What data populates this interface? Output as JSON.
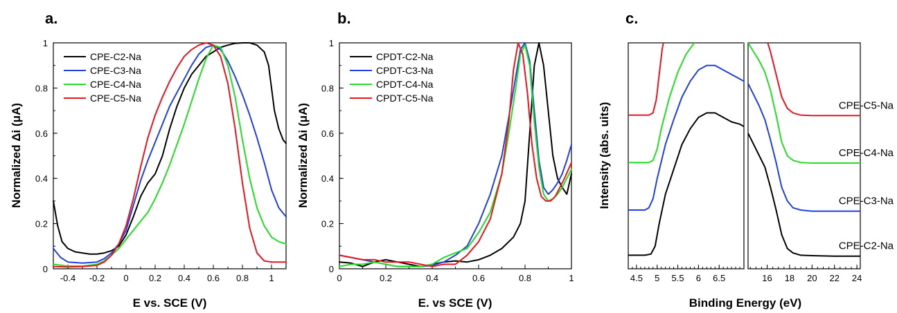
{
  "colors": {
    "black": "#000000",
    "blue": "#1f3fe0",
    "green": "#22dd22",
    "red": "#e8141e"
  },
  "chart_data": [
    {
      "type": "line",
      "panel_letter": "a.",
      "xlabel": "E vs. SCE (V)",
      "ylabel": "Normalized Δi (μA)",
      "xlim": [
        -0.5,
        1.1
      ],
      "ylim": [
        0,
        1
      ],
      "xticks": [
        -0.4,
        -0.2,
        0,
        0.2,
        0.4,
        0.6,
        0.8,
        1
      ],
      "xtick_labels": [
        "-0.4",
        "-0.2",
        "0",
        "0.2",
        "0.4",
        "0.6",
        "0.8",
        "1"
      ],
      "yticks": [
        0,
        0.2,
        0.4,
        0.6,
        0.8,
        1
      ],
      "ytick_labels": [
        "0",
        "0.2",
        "0.4",
        "0.6",
        "0.8",
        "1"
      ],
      "legend_position": "top-left",
      "series": [
        {
          "name": "CPE-C2-Na",
          "color": "#000000",
          "x": [
            -0.5,
            -0.47,
            -0.44,
            -0.4,
            -0.35,
            -0.3,
            -0.25,
            -0.2,
            -0.15,
            -0.1,
            -0.05,
            0,
            0.05,
            0.1,
            0.15,
            0.2,
            0.25,
            0.3,
            0.35,
            0.4,
            0.45,
            0.5,
            0.55,
            0.6,
            0.65,
            0.7,
            0.75,
            0.8,
            0.85,
            0.9,
            0.95,
            0.98,
            1.0,
            1.02,
            1.05,
            1.08,
            1.1
          ],
          "y": [
            0.3,
            0.19,
            0.12,
            0.09,
            0.075,
            0.07,
            0.065,
            0.065,
            0.07,
            0.08,
            0.1,
            0.15,
            0.23,
            0.32,
            0.38,
            0.42,
            0.5,
            0.62,
            0.72,
            0.8,
            0.86,
            0.9,
            0.94,
            0.96,
            0.98,
            0.99,
            0.998,
            1.0,
            1.0,
            0.99,
            0.96,
            0.9,
            0.8,
            0.7,
            0.62,
            0.57,
            0.555
          ]
        },
        {
          "name": "CPE-C3-Na",
          "color": "#1f3fe0",
          "x": [
            -0.5,
            -0.45,
            -0.4,
            -0.3,
            -0.2,
            -0.15,
            -0.1,
            -0.05,
            0,
            0.05,
            0.1,
            0.15,
            0.2,
            0.25,
            0.3,
            0.35,
            0.4,
            0.45,
            0.5,
            0.55,
            0.6,
            0.65,
            0.7,
            0.75,
            0.8,
            0.85,
            0.9,
            0.95,
            1.0,
            1.05,
            1.1
          ],
          "y": [
            0.09,
            0.05,
            0.03,
            0.025,
            0.03,
            0.045,
            0.07,
            0.11,
            0.17,
            0.28,
            0.39,
            0.48,
            0.56,
            0.64,
            0.72,
            0.78,
            0.84,
            0.9,
            0.95,
            0.98,
            0.99,
            0.97,
            0.92,
            0.85,
            0.77,
            0.68,
            0.58,
            0.47,
            0.35,
            0.27,
            0.23
          ]
        },
        {
          "name": "CPE-C4-Na",
          "color": "#22dd22",
          "x": [
            -0.5,
            -0.4,
            -0.3,
            -0.2,
            -0.15,
            -0.1,
            -0.05,
            0,
            0.05,
            0.1,
            0.15,
            0.2,
            0.25,
            0.3,
            0.35,
            0.4,
            0.45,
            0.5,
            0.55,
            0.6,
            0.65,
            0.7,
            0.75,
            0.8,
            0.85,
            0.9,
            0.95,
            1.0,
            1.05,
            1.1
          ],
          "y": [
            0.02,
            0.012,
            0.012,
            0.02,
            0.035,
            0.06,
            0.09,
            0.13,
            0.17,
            0.21,
            0.25,
            0.31,
            0.38,
            0.46,
            0.55,
            0.64,
            0.74,
            0.84,
            0.93,
            0.99,
            0.98,
            0.9,
            0.76,
            0.57,
            0.4,
            0.27,
            0.19,
            0.14,
            0.12,
            0.11
          ]
        },
        {
          "name": "CPE-C5-Na",
          "color": "#e8141e",
          "x": [
            -0.5,
            -0.4,
            -0.3,
            -0.2,
            -0.15,
            -0.1,
            -0.05,
            0,
            0.05,
            0.1,
            0.15,
            0.2,
            0.25,
            0.3,
            0.35,
            0.4,
            0.45,
            0.5,
            0.55,
            0.6,
            0.65,
            0.7,
            0.75,
            0.8,
            0.85,
            0.9,
            0.95,
            1.0,
            1.05,
            1.1
          ],
          "y": [
            0.01,
            0.008,
            0.01,
            0.015,
            0.03,
            0.06,
            0.11,
            0.19,
            0.31,
            0.45,
            0.58,
            0.68,
            0.76,
            0.83,
            0.89,
            0.94,
            0.97,
            0.99,
            1.0,
            0.99,
            0.94,
            0.82,
            0.62,
            0.38,
            0.18,
            0.07,
            0.035,
            0.03,
            0.03,
            0.03
          ]
        }
      ]
    },
    {
      "type": "line",
      "panel_letter": "b.",
      "xlabel": "E. vs SCE (V)",
      "ylabel": "Normalized Δi (μA)",
      "xlim": [
        0,
        1
      ],
      "ylim": [
        0,
        1
      ],
      "xticks": [
        0,
        0.2,
        0.4,
        0.6,
        0.8,
        1
      ],
      "xtick_labels": [
        "0",
        "0.2",
        "0.4",
        "0.6",
        "0.8",
        "1"
      ],
      "yticks": [
        0,
        0.2,
        0.4,
        0.6,
        0.8,
        1
      ],
      "ytick_labels": [
        "0",
        "0.2",
        "0.4",
        "0.6",
        "0.8",
        "1"
      ],
      "legend_position": "top-left",
      "series": [
        {
          "name": "CPDT-C2-Na",
          "color": "#000000",
          "x": [
            0,
            0.05,
            0.1,
            0.15,
            0.2,
            0.25,
            0.3,
            0.35,
            0.4,
            0.45,
            0.5,
            0.55,
            0.6,
            0.65,
            0.7,
            0.75,
            0.78,
            0.8,
            0.82,
            0.84,
            0.86,
            0.88,
            0.9,
            0.92,
            0.94,
            0.96,
            0.98,
            1.0
          ],
          "y": [
            0.03,
            0.025,
            0.01,
            0.03,
            0.04,
            0.03,
            0.02,
            0.01,
            0.02,
            0.03,
            0.035,
            0.03,
            0.04,
            0.06,
            0.09,
            0.14,
            0.2,
            0.3,
            0.6,
            0.9,
            1.0,
            0.9,
            0.7,
            0.5,
            0.4,
            0.36,
            0.33,
            0.42
          ]
        },
        {
          "name": "CPDT-C3-Na",
          "color": "#1f3fe0",
          "x": [
            0,
            0.05,
            0.1,
            0.15,
            0.2,
            0.25,
            0.3,
            0.35,
            0.4,
            0.45,
            0.5,
            0.55,
            0.6,
            0.65,
            0.7,
            0.73,
            0.76,
            0.78,
            0.8,
            0.82,
            0.84,
            0.86,
            0.88,
            0.9,
            0.92,
            0.94,
            0.96,
            0.98,
            1.0
          ],
          "y": [
            0.06,
            0.05,
            0.04,
            0.03,
            0.02,
            0.01,
            0.01,
            0.01,
            0.015,
            0.03,
            0.06,
            0.1,
            0.2,
            0.33,
            0.5,
            0.67,
            0.85,
            0.97,
            1.0,
            0.92,
            0.7,
            0.48,
            0.36,
            0.33,
            0.35,
            0.38,
            0.42,
            0.48,
            0.55
          ]
        },
        {
          "name": "CPDT-C4-Na",
          "color": "#22dd22",
          "x": [
            0,
            0.05,
            0.1,
            0.15,
            0.2,
            0.25,
            0.3,
            0.35,
            0.4,
            0.45,
            0.5,
            0.55,
            0.6,
            0.65,
            0.7,
            0.73,
            0.76,
            0.78,
            0.8,
            0.82,
            0.84,
            0.86,
            0.88,
            0.9,
            0.92,
            0.94,
            0.96,
            0.98,
            1.0
          ],
          "y": [
            0.01,
            0.02,
            0.02,
            0.03,
            0.02,
            0.01,
            0.01,
            0.01,
            0.02,
            0.05,
            0.07,
            0.09,
            0.16,
            0.25,
            0.42,
            0.6,
            0.8,
            0.95,
            0.99,
            0.9,
            0.65,
            0.45,
            0.33,
            0.3,
            0.31,
            0.33,
            0.36,
            0.4,
            0.44
          ]
        },
        {
          "name": "CPDT-C5-Na",
          "color": "#e8141e",
          "x": [
            0,
            0.05,
            0.1,
            0.15,
            0.2,
            0.25,
            0.3,
            0.35,
            0.4,
            0.45,
            0.5,
            0.55,
            0.6,
            0.65,
            0.7,
            0.73,
            0.75,
            0.77,
            0.79,
            0.81,
            0.83,
            0.85,
            0.87,
            0.89,
            0.91,
            0.93,
            0.95,
            0.97,
            1.0
          ],
          "y": [
            0.06,
            0.05,
            0.04,
            0.04,
            0.03,
            0.03,
            0.03,
            0.02,
            0.01,
            0.02,
            0.02,
            0.06,
            0.12,
            0.22,
            0.42,
            0.65,
            0.88,
            1.0,
            0.95,
            0.78,
            0.55,
            0.4,
            0.32,
            0.3,
            0.3,
            0.32,
            0.36,
            0.4,
            0.47
          ]
        }
      ]
    },
    {
      "type": "line",
      "panel_letter": "c.",
      "xlabel": "Binding Energy (eV)",
      "ylabel": "Intensity (abs. uits)",
      "broken_axis": true,
      "ylim": [
        0,
        1
      ],
      "left_segment": {
        "xlim": [
          4.3,
          7.1
        ],
        "xticks": [
          4.5,
          5,
          5.5,
          6,
          6.5
        ],
        "xtick_labels": [
          "4.5",
          "5",
          "5.5",
          "6",
          "6.5"
        ]
      },
      "right_segment": {
        "xlim": [
          14.3,
          24.3
        ],
        "xticks": [
          16,
          18,
          20,
          22,
          24
        ],
        "xtick_labels": [
          "16",
          "18",
          "20",
          "22",
          "24"
        ]
      },
      "series": [
        {
          "name": "CPE-C2-Na",
          "color": "#000000",
          "left": {
            "x": [
              4.3,
              4.5,
              4.7,
              4.85,
              4.95,
              5.05,
              5.2,
              5.4,
              5.6,
              5.8,
              6.0,
              6.2,
              6.4,
              6.6,
              6.8,
              7.0,
              7.1
            ],
            "y": [
              0.06,
              0.06,
              0.06,
              0.065,
              0.1,
              0.2,
              0.33,
              0.44,
              0.55,
              0.62,
              0.67,
              0.69,
              0.69,
              0.67,
              0.65,
              0.64,
              0.63
            ]
          },
          "right": {
            "x": [
              14.3,
              14.8,
              15.3,
              15.8,
              16.3,
              16.8,
              17.3,
              17.8,
              18.3,
              19.0,
              20.0,
              22.0,
              24.3
            ],
            "y": [
              0.6,
              0.55,
              0.5,
              0.45,
              0.36,
              0.26,
              0.15,
              0.09,
              0.07,
              0.06,
              0.058,
              0.056,
              0.056
            ]
          }
        },
        {
          "name": "CPE-C3-Na",
          "color": "#1f3fe0",
          "left": {
            "x": [
              4.3,
              4.5,
              4.7,
              4.8,
              4.9,
              5.0,
              5.2,
              5.4,
              5.6,
              5.8,
              6.0,
              6.2,
              6.4,
              6.6,
              6.8,
              7.0,
              7.1
            ],
            "y": [
              0.26,
              0.26,
              0.26,
              0.27,
              0.31,
              0.4,
              0.55,
              0.66,
              0.76,
              0.83,
              0.88,
              0.9,
              0.9,
              0.88,
              0.86,
              0.84,
              0.83
            ]
          },
          "right": {
            "x": [
              14.3,
              14.8,
              15.3,
              15.8,
              16.3,
              16.8,
              17.3,
              17.8,
              18.3,
              19.0,
              20.0,
              22.0,
              24.3
            ],
            "y": [
              0.82,
              0.77,
              0.72,
              0.66,
              0.57,
              0.47,
              0.36,
              0.3,
              0.27,
              0.26,
              0.255,
              0.255,
              0.255
            ]
          }
        },
        {
          "name": "CPE-C4-Na",
          "color": "#22dd22",
          "left": {
            "x": [
              4.3,
              4.6,
              4.8,
              4.9,
              5.0,
              5.1,
              5.3,
              5.5,
              5.7,
              5.9,
              6.1,
              6.3,
              6.5,
              6.7,
              6.9,
              7.1
            ],
            "y": [
              0.47,
              0.47,
              0.47,
              0.48,
              0.53,
              0.62,
              0.76,
              0.87,
              0.95,
              1.0,
              1.03,
              1.05,
              1.05,
              1.04,
              1.02,
              1.0
            ]
          },
          "right": {
            "x": [
              14.3,
              14.8,
              15.3,
              15.8,
              16.3,
              16.8,
              17.3,
              17.8,
              18.3,
              19.0,
              20.0,
              22.0,
              24.3
            ],
            "y": [
              1.0,
              0.96,
              0.92,
              0.87,
              0.79,
              0.68,
              0.56,
              0.5,
              0.48,
              0.47,
              0.468,
              0.468,
              0.468
            ]
          }
        },
        {
          "name": "CPE-C5-Na",
          "color": "#e8141e",
          "left": {
            "x": [
              4.3,
              4.6,
              4.8,
              4.9,
              4.98,
              5.05,
              5.12,
              5.2,
              5.3
            ],
            "y": [
              0.68,
              0.68,
              0.68,
              0.69,
              0.75,
              0.86,
              0.97,
              1.05,
              1.12
            ]
          },
          "right": {
            "x": [
              14.3,
              14.8,
              15.3,
              15.8,
              16.3,
              16.8,
              17.3,
              17.8,
              18.3,
              19.0,
              20.0,
              22.0,
              24.3
            ],
            "y": [
              1.12,
              1.12,
              1.1,
              1.04,
              0.96,
              0.86,
              0.76,
              0.71,
              0.69,
              0.68,
              0.678,
              0.678,
              0.678
            ]
          }
        }
      ]
    }
  ]
}
